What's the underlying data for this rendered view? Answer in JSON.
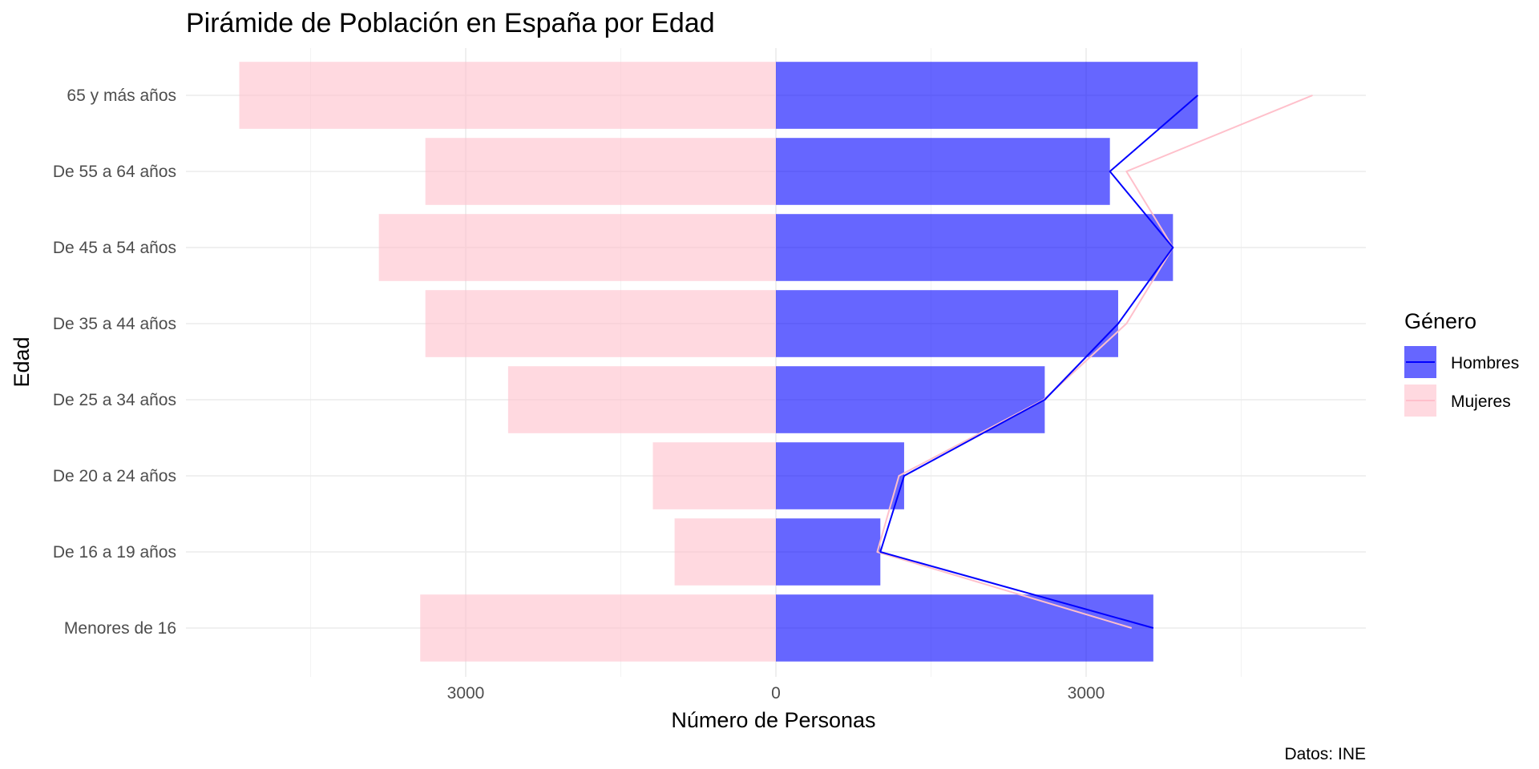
{
  "chart_data": {
    "type": "bar",
    "orientation": "horizontal",
    "title": "Pirámide de Población en España por Edad",
    "xlabel": "Número de Personas",
    "ylabel": "Edad",
    "caption": "Datos: INE",
    "categories": [
      "Menores de 16",
      "De 16 a 19 años",
      "De 20 a 24 años",
      "De 25 a 34 años",
      "De 35 a 44 años",
      "De 45 a 54 años",
      "De 55 a 64 años",
      "65 y más años"
    ],
    "series": [
      {
        "name": "Hombres",
        "color": "#0000ff",
        "values": [
          3650,
          1010,
          1240,
          2600,
          3310,
          3840,
          3230,
          4080
        ]
      },
      {
        "name": "Mujeres",
        "color": "#ffc0cb",
        "values": [
          3440,
          980,
          1190,
          2590,
          3390,
          3840,
          3390,
          5190
        ]
      }
    ],
    "bar_opacity": 0.6,
    "xlim": [
      -5700,
      5700
    ],
    "x_ticks": [
      -3000,
      0,
      3000
    ],
    "x_tick_labels": [
      "3000",
      "0",
      "3000"
    ],
    "x_minor_ticks": [
      -4500,
      -1500,
      1500,
      4500
    ],
    "legend": {
      "title": "Género",
      "position": "right",
      "entries": [
        "Hombres",
        "Mujeres"
      ]
    },
    "grid": true
  }
}
